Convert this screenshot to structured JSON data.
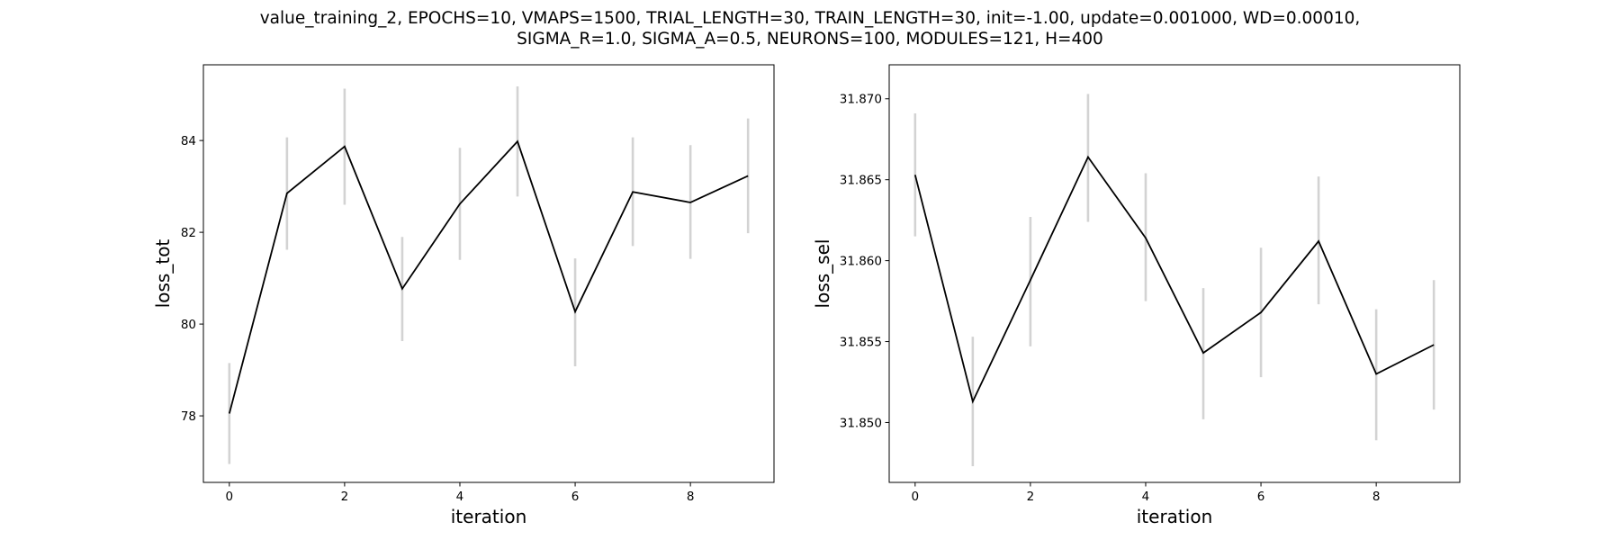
{
  "figure": {
    "title_lines": [
      "value_training_2, EPOCHS=10, VMAPS=1500, TRIAL_LENGTH=30, TRAIN_LENGTH=30, init=-1.00, update=0.001000, WD=0.00010,",
      "SIGMA_R=1.0, SIGMA_A=0.5, NEURONS=100, MODULES=121, H=400"
    ]
  },
  "chart_data": [
    {
      "type": "line",
      "xlabel": "iteration",
      "ylabel": "loss_tot",
      "xlim": [
        -0.45,
        9.45
      ],
      "ylim": [
        76.55,
        85.65
      ],
      "xticks": [
        0,
        2,
        4,
        6,
        8
      ],
      "xtick_labels": [
        "0",
        "2",
        "4",
        "6",
        "8"
      ],
      "yticks": [
        78,
        80,
        82,
        84
      ],
      "ytick_labels": [
        "78",
        "80",
        "82",
        "84"
      ],
      "grid": false,
      "line_color": "#000000",
      "errorbar_color": "#d3d3d3",
      "x": [
        0,
        1,
        2,
        3,
        4,
        5,
        6,
        7,
        8,
        9
      ],
      "y": [
        78.05,
        82.85,
        83.87,
        80.77,
        82.62,
        83.98,
        80.27,
        82.88,
        82.65,
        83.23
      ],
      "err_low": [
        76.95,
        81.62,
        82.6,
        79.63,
        81.4,
        82.78,
        79.08,
        81.7,
        81.42,
        81.98
      ],
      "err_high": [
        79.15,
        84.07,
        85.13,
        81.9,
        83.84,
        85.18,
        81.43,
        84.07,
        83.9,
        84.48
      ]
    },
    {
      "type": "line",
      "xlabel": "iteration",
      "ylabel": "loss_sel",
      "xlim": [
        -0.45,
        9.45
      ],
      "ylim": [
        31.8463,
        31.8721
      ],
      "xticks": [
        0,
        2,
        4,
        6,
        8
      ],
      "xtick_labels": [
        "0",
        "2",
        "4",
        "6",
        "8"
      ],
      "yticks": [
        31.85,
        31.855,
        31.86,
        31.865,
        31.87
      ],
      "ytick_labels": [
        "31.850",
        "31.855",
        "31.860",
        "31.865",
        "31.870"
      ],
      "grid": false,
      "line_color": "#000000",
      "errorbar_color": "#d3d3d3",
      "x": [
        0,
        1,
        2,
        3,
        4,
        5,
        6,
        7,
        8,
        9
      ],
      "y": [
        31.8653,
        31.8513,
        31.8588,
        31.8664,
        31.8614,
        31.8543,
        31.8568,
        31.8612,
        31.853,
        31.8548
      ],
      "err_low": [
        31.8615,
        31.8473,
        31.8547,
        31.8624,
        31.8575,
        31.8502,
        31.8528,
        31.8573,
        31.8489,
        31.8508
      ],
      "err_high": [
        31.8691,
        31.8553,
        31.8627,
        31.8703,
        31.8654,
        31.8583,
        31.8608,
        31.8652,
        31.857,
        31.8588
      ]
    }
  ]
}
